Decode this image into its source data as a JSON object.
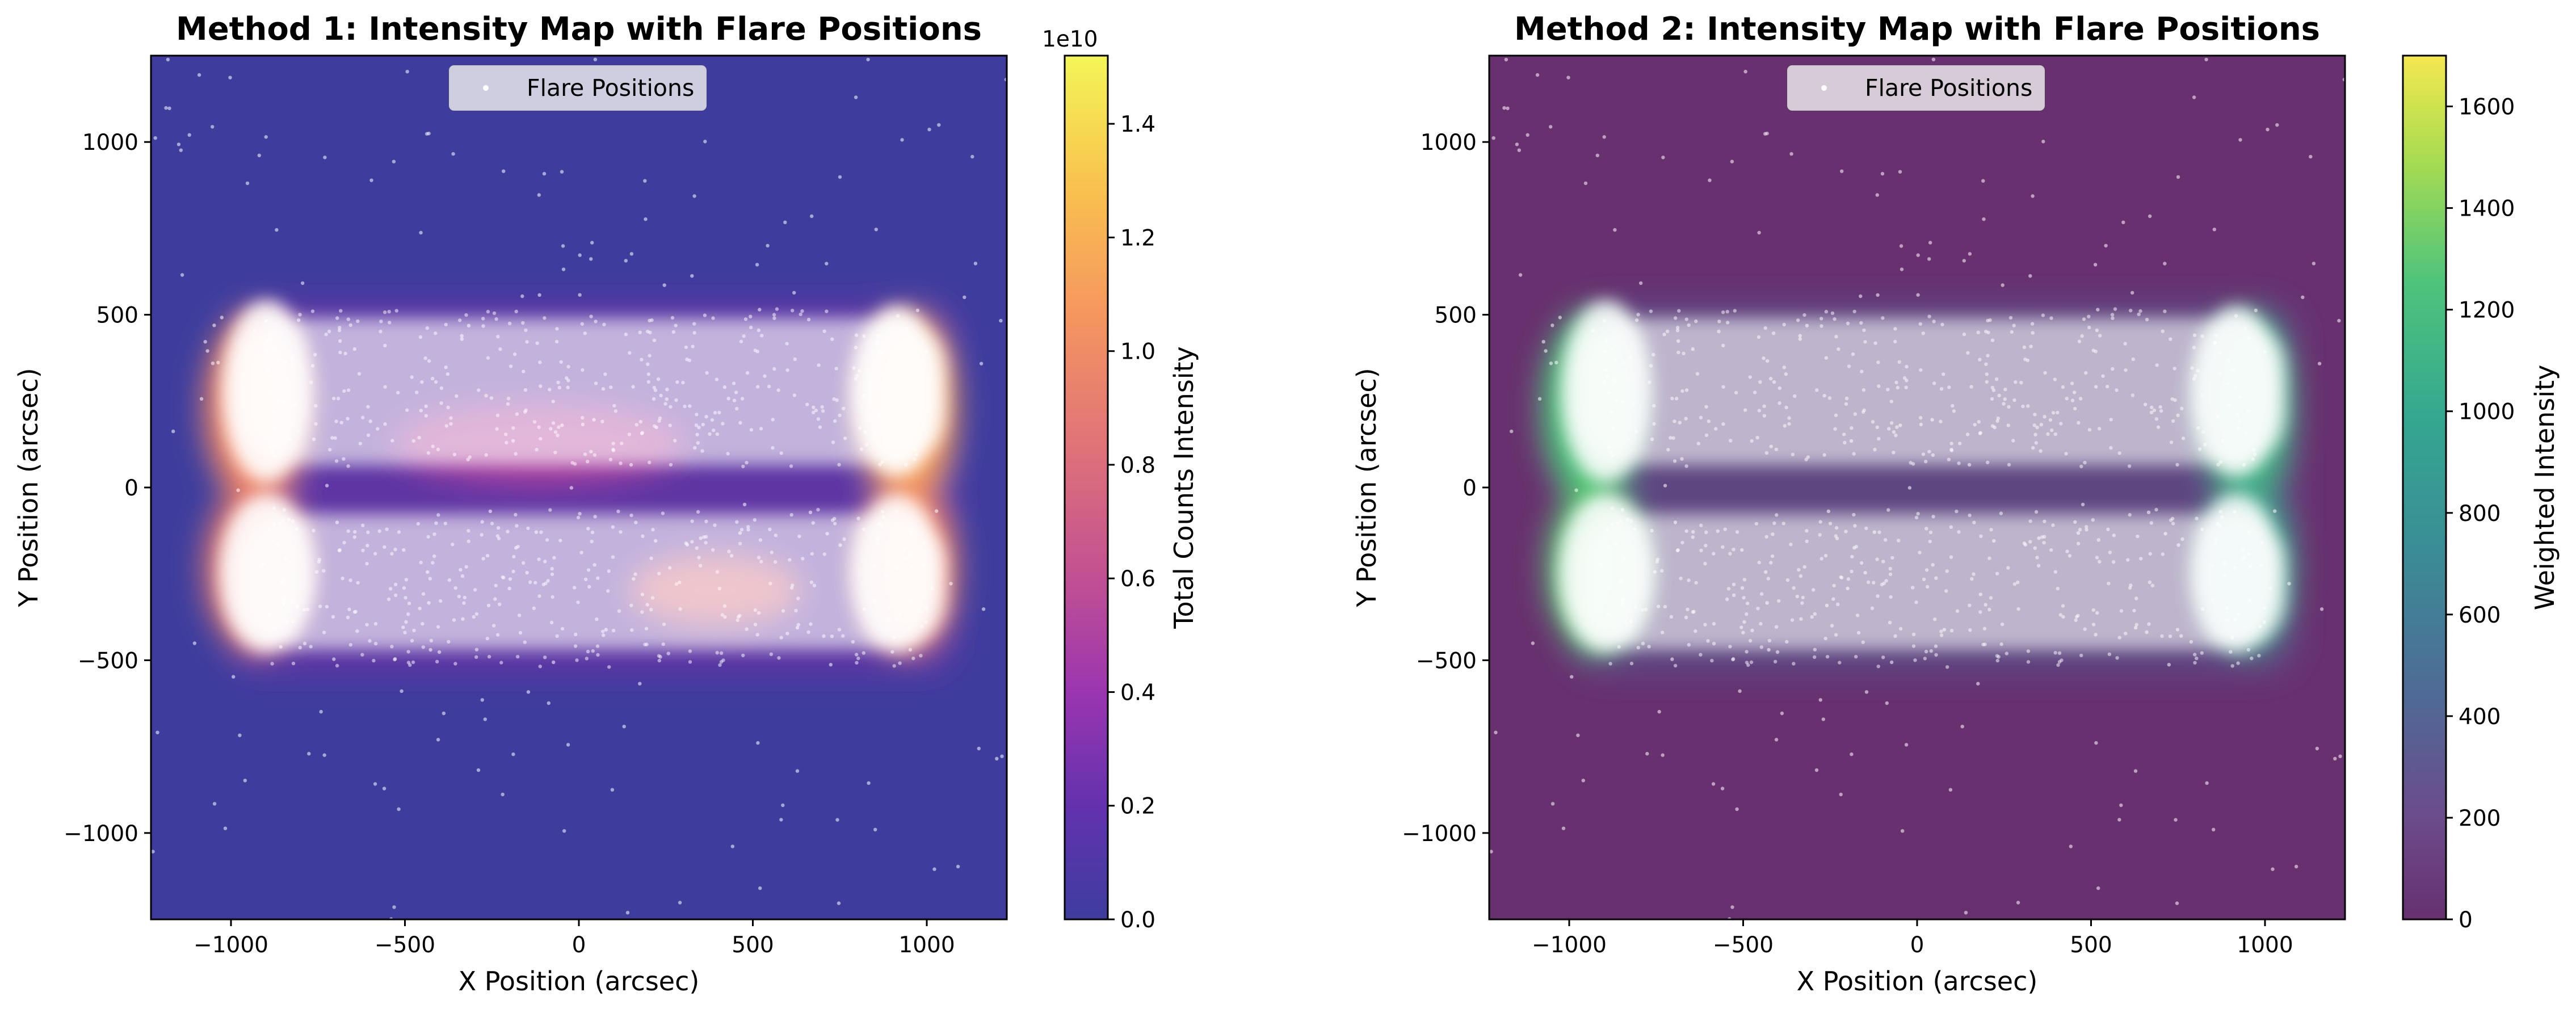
{
  "chart_data": [
    {
      "type": "heatmap",
      "title": "Method 1: Intensity Map with Flare Positions",
      "xlabel": "X Position (arcsec)",
      "ylabel": "Y Position (arcsec)",
      "xlim": [
        -1230,
        1230
      ],
      "ylim": [
        -1250,
        1250
      ],
      "xticks": [
        -1000,
        -500,
        0,
        500,
        1000
      ],
      "yticks": [
        -1000,
        -500,
        0,
        500,
        1000
      ],
      "colormap": "plasma",
      "colorbar": {
        "label": "Total Counts Intensity",
        "multiplier": "1e10",
        "range": [
          0,
          1.52
        ],
        "ticks": [
          "0.0",
          "0.2",
          "0.4",
          "0.6",
          "0.8",
          "1.0",
          "1.2",
          "1.4"
        ]
      },
      "overlay": {
        "type": "scatter",
        "name": "Flare Positions",
        "color": "#ffffff"
      },
      "legend": {
        "position": "top-center",
        "entries": [
          "Flare Positions"
        ]
      },
      "intensity_peaks": [
        {
          "x": -930,
          "y": 200,
          "value": 1.1
        },
        {
          "x": 1000,
          "y": 150,
          "value": 1.3
        },
        {
          "x": -900,
          "y": -250,
          "value": 0.9
        },
        {
          "x": 450,
          "y": -300,
          "value": 0.8
        },
        {
          "x": 950,
          "y": -250,
          "value": 1.1
        }
      ]
    },
    {
      "type": "heatmap",
      "title": "Method 2: Intensity Map with Flare Positions",
      "xlabel": "X Position (arcsec)",
      "ylabel": "Y Position (arcsec)",
      "xlim": [
        -1230,
        1230
      ],
      "ylim": [
        -1250,
        1250
      ],
      "xticks": [
        -1000,
        -500,
        0,
        500,
        1000
      ],
      "yticks": [
        -1000,
        -500,
        0,
        500,
        1000
      ],
      "colormap": "viridis",
      "colorbar": {
        "label": "Weighted Intensity",
        "multiplier": "",
        "range": [
          0,
          1700
        ],
        "ticks": [
          "0",
          "200",
          "400",
          "600",
          "800",
          "1000",
          "1200",
          "1400",
          "1600"
        ]
      },
      "overlay": {
        "type": "scatter",
        "name": "Flare Positions",
        "color": "#ffffff"
      },
      "legend": {
        "position": "top-center",
        "entries": [
          "Flare Positions"
        ]
      },
      "intensity_peaks": [
        {
          "x": -980,
          "y": 150,
          "value": 1100
        },
        {
          "x": 950,
          "y": 200,
          "value": 1200
        },
        {
          "x": -950,
          "y": -250,
          "value": 1000
        },
        {
          "x": 960,
          "y": -250,
          "value": 1100
        }
      ]
    }
  ]
}
